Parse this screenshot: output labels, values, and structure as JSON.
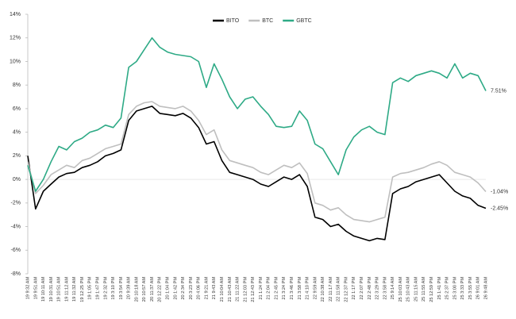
{
  "chart_data": {
    "type": "line",
    "categories": [
      "19 9:32 AM",
      "19 9:51 AM",
      "19 10:11 AM",
      "19 10:31 AM",
      "19 10:51 AM",
      "19 11:12 AM",
      "19 11:32 AM",
      "19 12:25 PM",
      "19 1:05 PM",
      "19 1:47 PM",
      "19 2:32 PM",
      "19 3:10 PM",
      "19 3:54 PM",
      "20 9:39 AM",
      "20 10:18 AM",
      "20 10:57 AM",
      "20 11:37 AM",
      "20 12:22 PM",
      "20 1:04 PM",
      "20 1:42 PM",
      "20 2:34 PM",
      "20 3:23 PM",
      "20 4:06 PM",
      "21 9:21 AM",
      "21 9:43 AM",
      "21 10:04 AM",
      "21 10:43 AM",
      "21 11:22 AM",
      "21 12:03 PM",
      "21 12:43 PM",
      "21 1:24 PM",
      "21 2:04 PM",
      "21 2:45 PM",
      "21 3:24 PM",
      "21 3:46 PM",
      "21 3:58 PM",
      "21 4:10 PM",
      "22 9:59 AM",
      "22 10:38 AM",
      "22 11:17 AM",
      "22 11:58 AM",
      "22 12:37 PM",
      "22 1:17 PM",
      "22 2:07 PM",
      "22 2:48 PM",
      "22 3:29 PM",
      "22 3:58 PM",
      "25 9:14 AM",
      "25 10:03 AM",
      "25 10:43 AM",
      "25 11:15 AM",
      "25 11:55 AM",
      "25 12:59 PM",
      "25 1:41 PM",
      "25 2:37 PM",
      "25 3:00 PM",
      "25 3:33 PM",
      "25 3:55 PM",
      "26 9:01 AM",
      "26 9:48 AM"
    ],
    "series": [
      {
        "name": "BITO",
        "color": "#000000",
        "end_label": "-2.45%",
        "values": [
          2.0,
          -2.5,
          -1.0,
          -0.4,
          0.2,
          0.5,
          0.6,
          1.0,
          1.2,
          1.5,
          2.0,
          2.2,
          2.5,
          5.0,
          5.8,
          6.0,
          6.2,
          5.6,
          5.5,
          5.4,
          5.6,
          5.2,
          4.4,
          3.0,
          3.2,
          1.6,
          0.6,
          0.4,
          0.2,
          0.0,
          -0.4,
          -0.6,
          -0.2,
          0.2,
          0.0,
          0.4,
          -0.6,
          -3.2,
          -3.4,
          -4.0,
          -3.8,
          -4.4,
          -4.8,
          -5.0,
          -5.2,
          -5.0,
          -5.1,
          -1.2,
          -0.8,
          -0.6,
          -0.2,
          0.0,
          0.2,
          0.4,
          -0.3,
          -1.0,
          -1.4,
          -1.6,
          -2.2,
          -2.45
        ]
      },
      {
        "name": "BTC",
        "color": "#bfbfbf",
        "end_label": "-1.04%",
        "values": [
          1.5,
          -1.2,
          -0.5,
          0.4,
          0.8,
          1.2,
          1.0,
          1.6,
          1.8,
          2.2,
          2.6,
          2.8,
          3.0,
          5.5,
          6.2,
          6.5,
          6.6,
          6.2,
          6.1,
          6.0,
          6.2,
          5.8,
          5.0,
          3.8,
          4.2,
          2.5,
          1.6,
          1.4,
          1.2,
          1.0,
          0.6,
          0.4,
          0.8,
          1.2,
          1.0,
          1.4,
          0.5,
          -2.0,
          -2.2,
          -2.6,
          -2.4,
          -3.0,
          -3.4,
          -3.5,
          -3.6,
          -3.4,
          -3.2,
          0.2,
          0.5,
          0.6,
          0.8,
          1.0,
          1.3,
          1.5,
          1.2,
          0.6,
          0.4,
          0.2,
          -0.3,
          -1.04
        ]
      },
      {
        "name": "GBTC",
        "color": "#2eaa86",
        "end_label": "7.51%",
        "values": [
          1.2,
          -1.0,
          0.0,
          1.5,
          2.8,
          2.5,
          3.2,
          3.5,
          4.0,
          4.2,
          4.6,
          4.4,
          5.2,
          9.5,
          10.0,
          11.0,
          12.0,
          11.2,
          10.8,
          10.6,
          10.5,
          10.4,
          10.0,
          7.8,
          9.8,
          8.5,
          7.0,
          6.0,
          6.8,
          7.0,
          6.2,
          5.5,
          4.5,
          4.4,
          4.5,
          5.8,
          5.0,
          3.0,
          2.6,
          1.5,
          0.4,
          2.5,
          3.6,
          4.2,
          4.5,
          4.0,
          3.8,
          8.2,
          8.6,
          8.3,
          8.8,
          9.0,
          9.2,
          9.0,
          8.6,
          9.8,
          8.6,
          9.0,
          8.8,
          7.51
        ]
      }
    ],
    "ylim": [
      -8,
      14
    ],
    "yticks": [
      {
        "value": -8,
        "label": "-8%"
      },
      {
        "value": -6,
        "label": "-6%"
      },
      {
        "value": -4,
        "label": "-4%"
      },
      {
        "value": -2,
        "label": "-2%"
      },
      {
        "value": 0,
        "label": "0%"
      },
      {
        "value": 2,
        "label": "2%"
      },
      {
        "value": 4,
        "label": "4%"
      },
      {
        "value": 6,
        "label": "6%"
      },
      {
        "value": 8,
        "label": "8%"
      },
      {
        "value": 10,
        "label": "10%"
      },
      {
        "value": 12,
        "label": "12%"
      },
      {
        "value": 14,
        "label": "14%"
      }
    ],
    "grid": false,
    "legend": "top"
  }
}
